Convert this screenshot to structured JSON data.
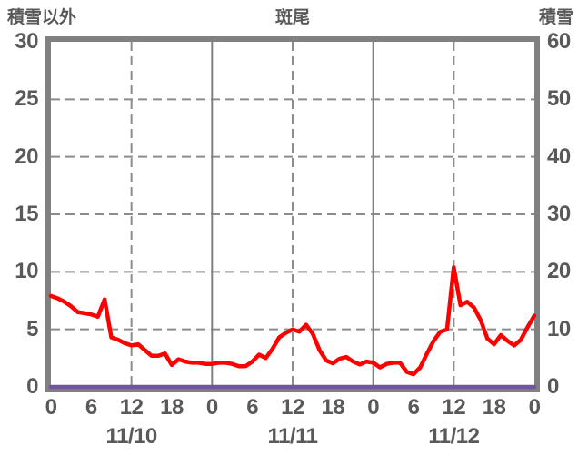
{
  "titles": {
    "left_axis": "積雪以外",
    "center": "斑尾",
    "right_axis": "積雪"
  },
  "chart_data": {
    "type": "line",
    "title": "斑尾",
    "left_axis": {
      "title": "積雪以外",
      "min": 0,
      "max": 30,
      "tick_labels": [
        "30",
        "25",
        "20",
        "15",
        "10",
        "5",
        "0"
      ],
      "tick_values": [
        30,
        25,
        20,
        15,
        10,
        5,
        0
      ]
    },
    "right_axis": {
      "title": "積雪",
      "min": 0,
      "max": 60,
      "tick_labels": [
        "60",
        "50",
        "40",
        "30",
        "20",
        "10",
        "0"
      ],
      "tick_values": [
        60,
        50,
        40,
        30,
        20,
        10,
        0
      ]
    },
    "x_axis": {
      "total_hours": 72,
      "hour_tick_labels": [
        "0",
        "6",
        "12",
        "18",
        "0",
        "6",
        "12",
        "18",
        "0",
        "6",
        "12",
        "18",
        "0"
      ],
      "hour_tick_positions": [
        0,
        6,
        12,
        18,
        24,
        30,
        36,
        42,
        48,
        54,
        60,
        66,
        72
      ],
      "date_labels": [
        "11/10",
        "11/11",
        "11/12"
      ],
      "date_center_hours": [
        12,
        36,
        60
      ],
      "solid_gridline_hours": [
        24,
        48
      ],
      "dashed_gridline_hours": [
        12,
        36,
        60
      ]
    },
    "horizontal_gridline_values": [
      5,
      10,
      15,
      20,
      25
    ],
    "series": [
      {
        "name": "積雪以外",
        "axis": "left",
        "color": "#ff0000",
        "sample_interval_hours": 1,
        "values": [
          7.9,
          7.7,
          7.4,
          7.0,
          6.5,
          6.4,
          6.3,
          6.1,
          7.6,
          4.3,
          4.1,
          3.8,
          3.6,
          3.7,
          3.2,
          2.7,
          2.7,
          2.9,
          1.9,
          2.4,
          2.2,
          2.1,
          2.1,
          2.0,
          2.0,
          2.1,
          2.1,
          2.0,
          1.8,
          1.8,
          2.2,
          2.8,
          2.5,
          3.3,
          4.3,
          4.7,
          5.0,
          4.8,
          5.4,
          4.6,
          3.2,
          2.3,
          2.05,
          2.45,
          2.6,
          2.2,
          1.95,
          2.2,
          2.1,
          1.7,
          2.0,
          2.1,
          2.1,
          1.3,
          1.1,
          1.7,
          2.9,
          4.0,
          4.8,
          5.0,
          10.4,
          7.1,
          7.4,
          6.9,
          5.8,
          4.2,
          3.7,
          4.5,
          4.0,
          3.6,
          4.1,
          5.2,
          6.2
        ]
      },
      {
        "name": "積雪",
        "axis": "right",
        "color": "#7153a1",
        "sample_interval_hours": 1,
        "constant_value": 0,
        "points_count": 73
      }
    ],
    "legend": "none",
    "plot_background": "#ffffff"
  },
  "style": {
    "text_color": "#595959",
    "border_color": "#808080",
    "solid_grid_color": "#808080",
    "dashed_grid_color": "#8c8c8c"
  }
}
